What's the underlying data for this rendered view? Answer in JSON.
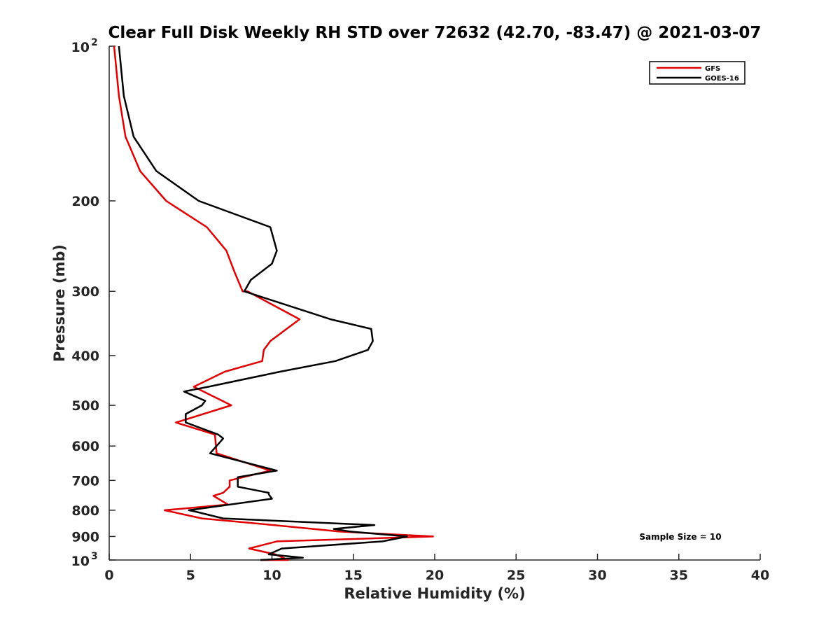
{
  "chart_data": {
    "type": "line",
    "title": "Clear Full Disk Weekly RH STD over 72632 (42.70, -83.47) @ 2021-03-07",
    "xlabel": "Relative Humidity (%)",
    "ylabel": "Pressure (mb)",
    "xlim": [
      0,
      40
    ],
    "ylim": [
      100,
      1000
    ],
    "y_scale": "log",
    "y_reversed": true,
    "x_ticks": [
      "0",
      "5",
      "10",
      "15",
      "20",
      "25",
      "30",
      "35",
      "40"
    ],
    "y_ticks": [
      {
        "value": 100,
        "base": "10",
        "exp": "2"
      },
      {
        "value": 200,
        "label": "200"
      },
      {
        "value": 300,
        "label": "300"
      },
      {
        "value": 400,
        "label": "400"
      },
      {
        "value": 500,
        "label": "500"
      },
      {
        "value": 600,
        "label": "600"
      },
      {
        "value": 700,
        "label": "700"
      },
      {
        "value": 800,
        "label": "800"
      },
      {
        "value": 900,
        "label": "900"
      },
      {
        "value": 1000,
        "base": "10",
        "exp": "3"
      }
    ],
    "grid": false,
    "legend_position": "top-right",
    "annotation": "Sample Size = 10",
    "series": [
      {
        "name": "GFS",
        "color": "#e00000",
        "points": [
          [
            0.3,
            100
          ],
          [
            0.6,
            125
          ],
          [
            1.0,
            150
          ],
          [
            1.9,
            175
          ],
          [
            3.5,
            200
          ],
          [
            6.0,
            225
          ],
          [
            7.2,
            250
          ],
          [
            7.7,
            275
          ],
          [
            8.2,
            300
          ],
          [
            8.5,
            300
          ],
          [
            11.7,
            340
          ],
          [
            10.9,
            355
          ],
          [
            9.9,
            375
          ],
          [
            9.5,
            390
          ],
          [
            9.4,
            410
          ],
          [
            7.1,
            430
          ],
          [
            5.2,
            460
          ],
          [
            7.5,
            500
          ],
          [
            4.1,
            540
          ],
          [
            6.5,
            570
          ],
          [
            6.6,
            620
          ],
          [
            9.9,
            670
          ],
          [
            7.4,
            700
          ],
          [
            7.4,
            720
          ],
          [
            7.0,
            740
          ],
          [
            6.4,
            750
          ],
          [
            7.3,
            780
          ],
          [
            3.4,
            800
          ],
          [
            5.7,
            830
          ],
          [
            10.1,
            855
          ],
          [
            13.3,
            875
          ],
          [
            14.1,
            880
          ],
          [
            19.9,
            900
          ],
          [
            10.3,
            920
          ],
          [
            8.6,
            950
          ],
          [
            10.2,
            975
          ],
          [
            11.0,
            1000
          ],
          [
            9.3,
            1000
          ]
        ]
      },
      {
        "name": "GOES-16",
        "color": "#000000",
        "points": [
          [
            0.6,
            100
          ],
          [
            0.9,
            125
          ],
          [
            1.5,
            150
          ],
          [
            2.9,
            175
          ],
          [
            5.5,
            200
          ],
          [
            9.9,
            225
          ],
          [
            10.3,
            250
          ],
          [
            10.0,
            265
          ],
          [
            8.7,
            285
          ],
          [
            8.3,
            300
          ],
          [
            13.6,
            340
          ],
          [
            16.1,
            355
          ],
          [
            16.2,
            375
          ],
          [
            15.9,
            390
          ],
          [
            13.9,
            410
          ],
          [
            10.5,
            430
          ],
          [
            6.1,
            460
          ],
          [
            4.6,
            470
          ],
          [
            5.9,
            490
          ],
          [
            5.7,
            500
          ],
          [
            4.7,
            520
          ],
          [
            4.7,
            540
          ],
          [
            6.7,
            570
          ],
          [
            7.0,
            580
          ],
          [
            6.2,
            620
          ],
          [
            10.3,
            670
          ],
          [
            7.9,
            690
          ],
          [
            7.9,
            720
          ],
          [
            9.8,
            740
          ],
          [
            9.8,
            745
          ],
          [
            10.0,
            760
          ],
          [
            4.9,
            800
          ],
          [
            5.3,
            805
          ],
          [
            7.0,
            830
          ],
          [
            16.3,
            855
          ],
          [
            13.8,
            870
          ],
          [
            14.8,
            880
          ],
          [
            18.3,
            900
          ],
          [
            16.8,
            920
          ],
          [
            10.6,
            950
          ],
          [
            9.8,
            975
          ],
          [
            11.9,
            990
          ],
          [
            9.3,
            1000
          ]
        ]
      }
    ]
  }
}
